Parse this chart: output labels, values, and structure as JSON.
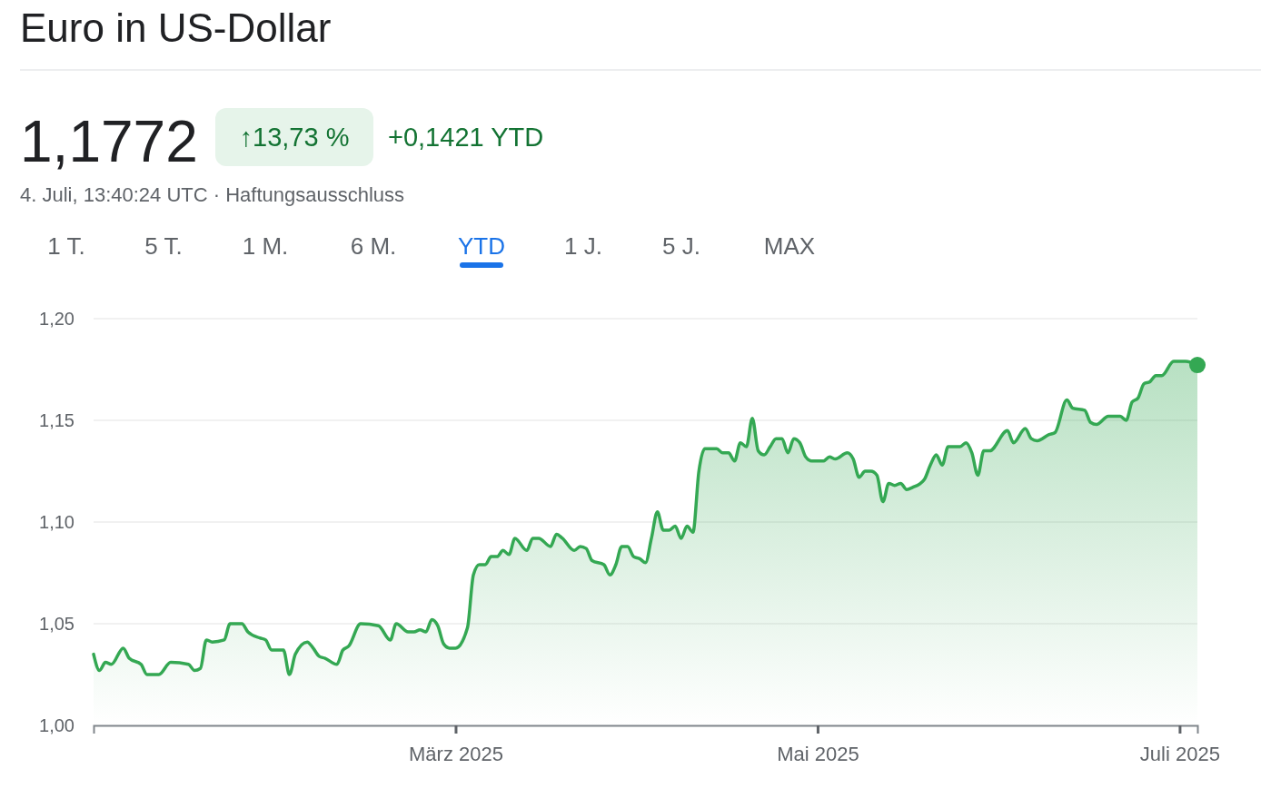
{
  "chart_data": {
    "type": "area",
    "title": "Euro in US-Dollar",
    "subtitle": "4. Juli, 13:40:24 UTC · Haftungsausschluss",
    "annotations": [
      "1,1772",
      "↑13,73 %",
      "+0,1421 YTD",
      "1 T.",
      "5 T.",
      "1 M.",
      "6 M.",
      "YTD",
      "1 J.",
      "5 J.",
      "MAX"
    ],
    "x": [
      "2024-12-30",
      "2024-12-31",
      "2025-01-01",
      "2025-01-02",
      "2025-01-04",
      "2025-01-05",
      "2025-01-07",
      "2025-01-08",
      "2025-01-10",
      "2025-01-12",
      "2025-01-15",
      "2025-01-16",
      "2025-01-17",
      "2025-01-18",
      "2025-01-19",
      "2025-01-21",
      "2025-01-22",
      "2025-01-24",
      "2025-01-25",
      "2025-01-27",
      "2025-01-28",
      "2025-01-29",
      "2025-01-31",
      "2025-02-01",
      "2025-02-02",
      "2025-02-04",
      "2025-02-05",
      "2025-02-06",
      "2025-02-07",
      "2025-02-09",
      "2025-02-10",
      "2025-02-11",
      "2025-02-13",
      "2025-02-16",
      "2025-02-18",
      "2025-02-19",
      "2025-02-21",
      "2025-02-22",
      "2025-02-23",
      "2025-02-24",
      "2025-02-25",
      "2025-02-26",
      "2025-02-27",
      "2025-02-28",
      "2025-03-01",
      "2025-03-03",
      "2025-03-04",
      "2025-03-05",
      "2025-03-06",
      "2025-03-07",
      "2025-03-08",
      "2025-03-09",
      "2025-03-10",
      "2025-03-11",
      "2025-03-13",
      "2025-03-14",
      "2025-03-15",
      "2025-03-17",
      "2025-03-18",
      "2025-03-19",
      "2025-03-21",
      "2025-03-22",
      "2025-03-23",
      "2025-03-24",
      "2025-03-26",
      "2025-03-27",
      "2025-03-28",
      "2025-03-29",
      "2025-03-30",
      "2025-03-31",
      "2025-04-01",
      "2025-04-02",
      "2025-04-03",
      "2025-04-04",
      "2025-04-05",
      "2025-04-06",
      "2025-04-07",
      "2025-04-08",
      "2025-04-09",
      "2025-04-10",
      "2025-04-11",
      "2025-04-12",
      "2025-04-14",
      "2025-04-15",
      "2025-04-16",
      "2025-04-17",
      "2025-04-18",
      "2025-04-19",
      "2025-04-20",
      "2025-04-21",
      "2025-04-22",
      "2025-04-23",
      "2025-04-24",
      "2025-04-25",
      "2025-04-26",
      "2025-04-27",
      "2025-04-28",
      "2025-04-29",
      "2025-04-30",
      "2025-05-02",
      "2025-05-03",
      "2025-05-04",
      "2025-05-06",
      "2025-05-07",
      "2025-05-08",
      "2025-05-09",
      "2025-05-10",
      "2025-05-11",
      "2025-05-12",
      "2025-05-13",
      "2025-05-14",
      "2025-05-15",
      "2025-05-16",
      "2025-05-17",
      "2025-05-19",
      "2025-05-20",
      "2025-05-21",
      "2025-05-22",
      "2025-05-23",
      "2025-05-25",
      "2025-05-26",
      "2025-05-27",
      "2025-05-28",
      "2025-05-29",
      "2025-05-30",
      "2025-06-02",
      "2025-06-03",
      "2025-06-05",
      "2025-06-06",
      "2025-06-07",
      "2025-06-09",
      "2025-06-10",
      "2025-06-12",
      "2025-06-13",
      "2025-06-15",
      "2025-06-16",
      "2025-06-17",
      "2025-06-19",
      "2025-06-21",
      "2025-06-22",
      "2025-06-23",
      "2025-06-24",
      "2025-06-25",
      "2025-06-26",
      "2025-06-27",
      "2025-06-28",
      "2025-06-30",
      "2025-07-02",
      "2025-07-04"
    ],
    "series": [
      {
        "color": "#34a853",
        "values": [
          1.035,
          1.027,
          1.031,
          1.03,
          1.038,
          1.033,
          1.03,
          1.025,
          1.025,
          1.031,
          1.03,
          1.027,
          1.028,
          1.042,
          1.041,
          1.042,
          1.05,
          1.05,
          1.046,
          1.043,
          1.042,
          1.037,
          1.037,
          1.025,
          1.035,
          1.041,
          1.038,
          1.034,
          1.033,
          1.03,
          1.037,
          1.039,
          1.05,
          1.049,
          1.042,
          1.05,
          1.046,
          1.046,
          1.047,
          1.046,
          1.052,
          1.049,
          1.04,
          1.038,
          1.038,
          1.048,
          1.074,
          1.079,
          1.079,
          1.083,
          1.083,
          1.086,
          1.084,
          1.092,
          1.086,
          1.092,
          1.092,
          1.088,
          1.094,
          1.092,
          1.086,
          1.088,
          1.087,
          1.081,
          1.079,
          1.074,
          1.079,
          1.088,
          1.088,
          1.083,
          1.082,
          1.08,
          1.092,
          1.105,
          1.096,
          1.096,
          1.098,
          1.092,
          1.098,
          1.095,
          1.125,
          1.136,
          1.136,
          1.134,
          1.134,
          1.13,
          1.139,
          1.137,
          1.151,
          1.135,
          1.133,
          1.137,
          1.141,
          1.141,
          1.134,
          1.141,
          1.139,
          1.132,
          1.13,
          1.13,
          1.132,
          1.131,
          1.134,
          1.131,
          1.122,
          1.125,
          1.125,
          1.123,
          1.11,
          1.119,
          1.118,
          1.119,
          1.116,
          1.117,
          1.121,
          1.128,
          1.133,
          1.128,
          1.137,
          1.137,
          1.139,
          1.134,
          1.123,
          1.135,
          1.135,
          1.145,
          1.139,
          1.146,
          1.141,
          1.14,
          1.143,
          1.144,
          1.16,
          1.156,
          1.155,
          1.149,
          1.148,
          1.152,
          1.152,
          1.15,
          1.159,
          1.161,
          1.168,
          1.169,
          1.172,
          1.172,
          1.179,
          1.179,
          1.1772
        ]
      }
    ],
    "xlim": [
      "2024-12-30",
      "2025-07-04"
    ],
    "xticks": [
      {
        "value": "2025-03-01",
        "label": "März 2025"
      },
      {
        "value": "2025-05-01",
        "label": "Mai 2025"
      },
      {
        "value": "2025-07-01",
        "label": "Juli 2025"
      }
    ],
    "ylim": [
      1.0,
      1.2
    ],
    "yticks": [
      {
        "value": 1.0,
        "label": "1,00"
      },
      {
        "value": 1.05,
        "label": "1,05"
      },
      {
        "value": 1.1,
        "label": "1,10"
      },
      {
        "value": 1.15,
        "label": "1,15"
      },
      {
        "value": 1.2,
        "label": "1,20"
      }
    ],
    "grid": "y",
    "marker": "none",
    "line_style": "solid"
  }
}
